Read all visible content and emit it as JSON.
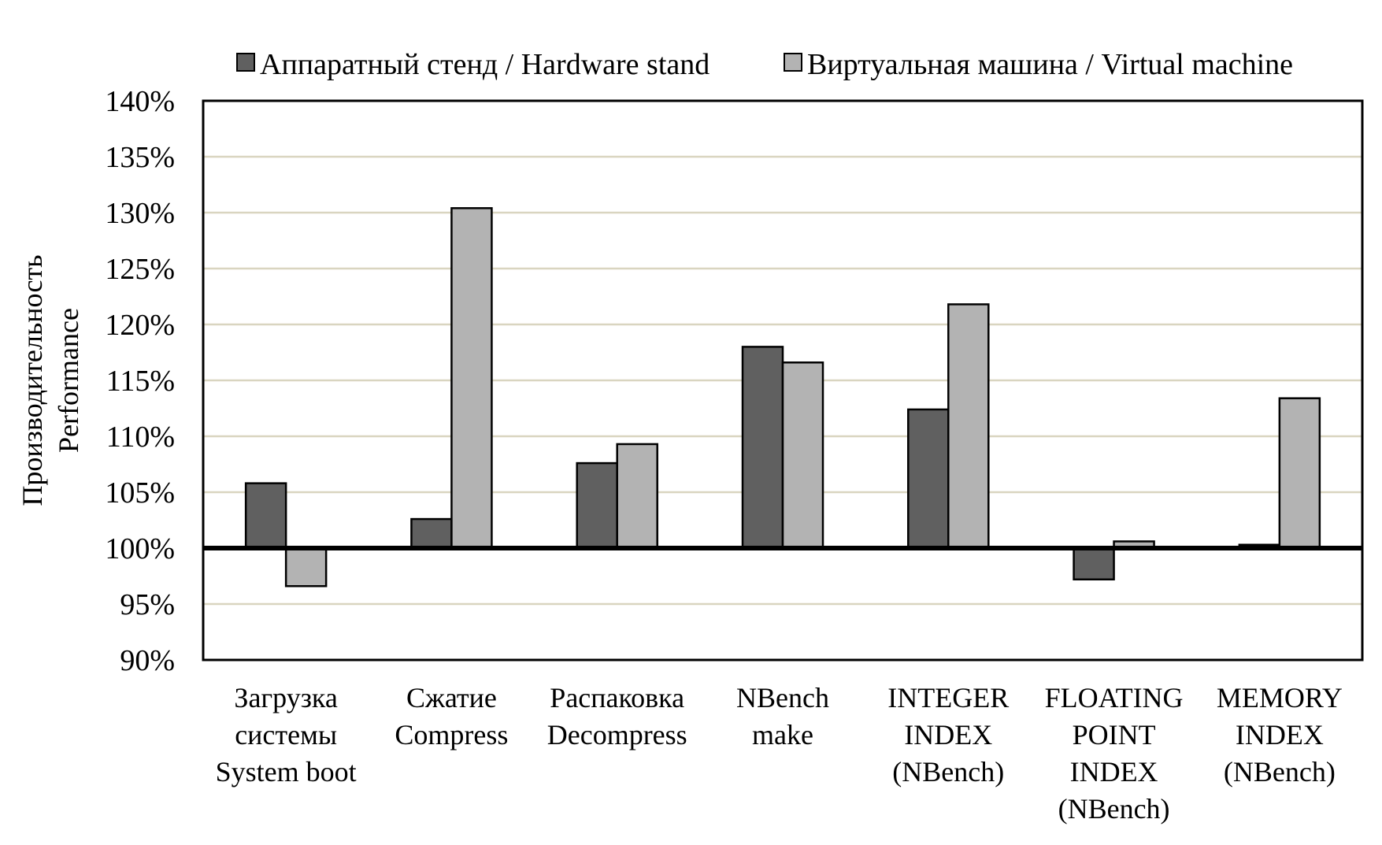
{
  "chart_data": {
    "type": "bar",
    "ylabel_lines": [
      "Производительность",
      "Performance"
    ],
    "ylim": [
      90,
      140
    ],
    "y_ticks": [
      "90%",
      "95%",
      "100%",
      "105%",
      "110%",
      "115%",
      "120%",
      "125%",
      "130%",
      "135%",
      "140%"
    ],
    "reference_line": 100,
    "grid": true,
    "legend_position": "top",
    "categories": [
      [
        "Загрузка",
        "системы",
        "System boot"
      ],
      [
        "Сжатие",
        "Compress"
      ],
      [
        "Распаковка",
        "Decompress"
      ],
      [
        "NBench",
        "make"
      ],
      [
        "INTEGER",
        "INDEX",
        "(NBench)"
      ],
      [
        "FLOATING",
        "POINT",
        "INDEX",
        "(NBench)"
      ],
      [
        "MEMORY",
        "INDEX",
        "(NBench)"
      ]
    ],
    "series": [
      {
        "name": "Аппаратный стенд / Hardware stand",
        "color": "#606060",
        "values": [
          105.8,
          102.6,
          107.6,
          118.0,
          112.4,
          97.2,
          100.3
        ]
      },
      {
        "name": "Виртуальная машина / Virtual machine",
        "color": "#b3b3b3",
        "values": [
          96.6,
          130.4,
          109.3,
          116.6,
          121.8,
          100.6,
          113.4
        ]
      }
    ]
  }
}
